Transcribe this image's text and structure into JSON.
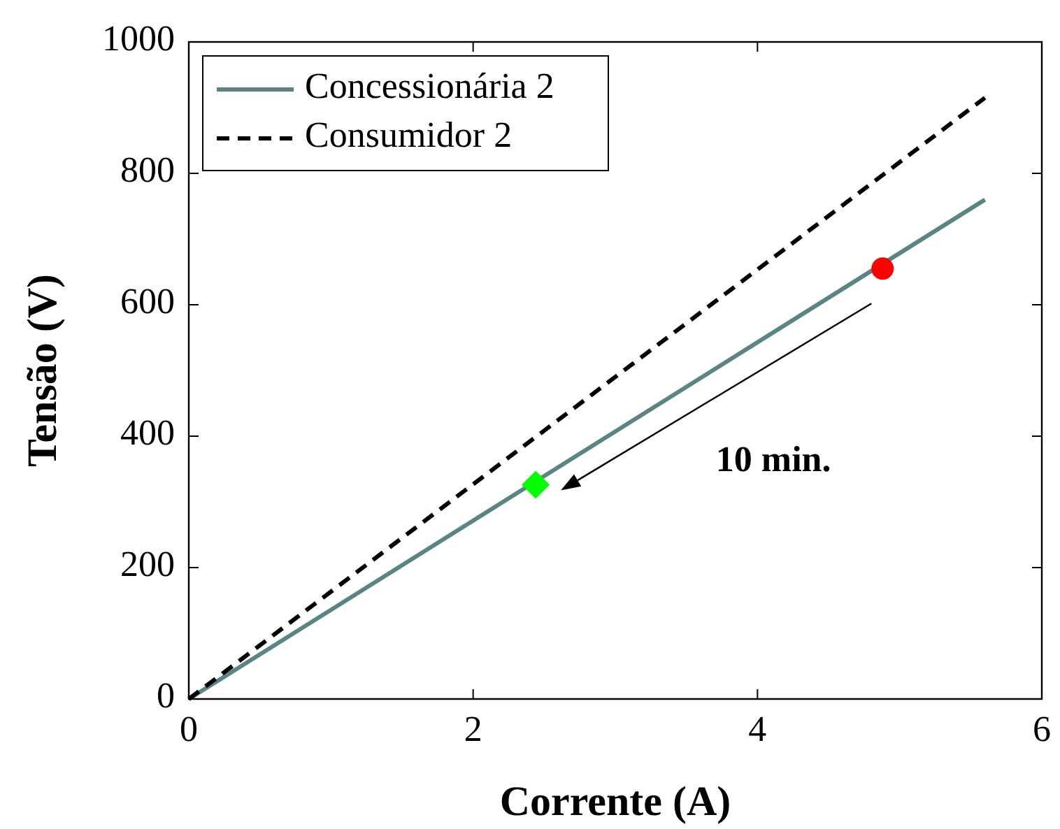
{
  "chart_data": {
    "type": "line",
    "xlabel": "Corrente (A)",
    "ylabel": "Tensão (V)",
    "xlim": [
      0,
      6
    ],
    "ylim": [
      0,
      1000
    ],
    "xticks": [
      0,
      2,
      4,
      6
    ],
    "yticks": [
      0,
      200,
      400,
      600,
      800,
      1000
    ],
    "grid": false,
    "legend": "top left",
    "series": [
      {
        "name": "Concessionária 2",
        "color": "#5a8585",
        "x": [
          0,
          5.6
        ],
        "values": [
          0,
          760
        ],
        "line_style": "solid"
      },
      {
        "name": "Consumidor 2",
        "color": "#000000",
        "x": [
          0,
          5.6
        ],
        "values": [
          0,
          915
        ],
        "line_style": "dashed"
      },
      {
        "type": "scatter",
        "color": "#ff0000",
        "x": [
          4.88
        ],
        "values": [
          655
        ],
        "marker": "circle"
      },
      {
        "type": "scatter",
        "color": "#00ff00",
        "x": [
          2.44
        ],
        "values": [
          326
        ],
        "marker": "diamond"
      }
    ],
    "annotations": [
      "10 min."
    ]
  }
}
